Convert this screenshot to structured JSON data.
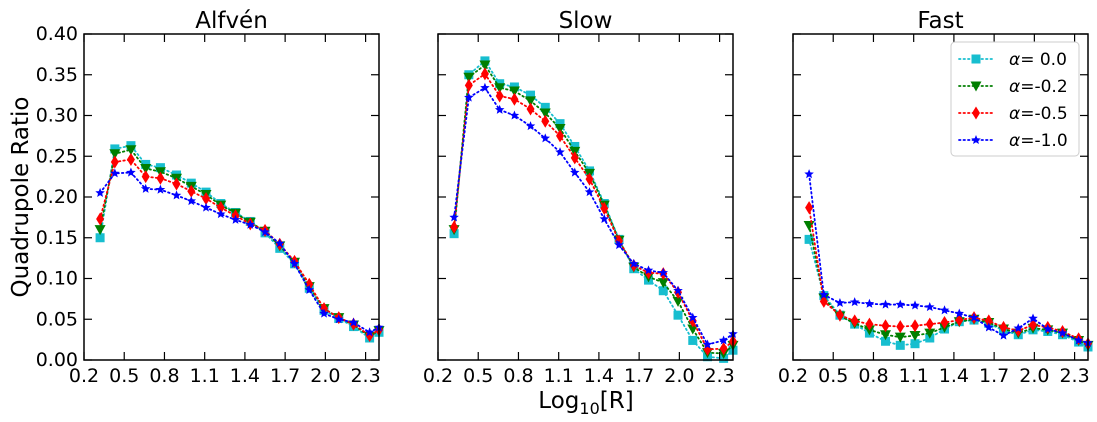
{
  "figure": {
    "ylabel": "Quadrupole Ratio",
    "xlabel_main": "Log",
    "xlabel_sub": "10",
    "xlabel_tail": "[R]"
  },
  "colors": {
    "alpha_0.0": "#17becf",
    "alpha_-0.2": "#007f00",
    "alpha_-0.5": "#ff0000",
    "alpha_-1.0": "#0000ff"
  },
  "legend": {
    "prefix": "α",
    "entries": [
      "= 0.0",
      "=-0.2",
      "=-0.5",
      "=-1.0"
    ],
    "placement": "top-right (Fast panel)"
  },
  "chart_data": [
    {
      "type": "line",
      "title": "Alfvén",
      "xlim": [
        0.2,
        2.4
      ],
      "ylim": [
        0.0,
        0.4
      ],
      "xticks": [
        "0.2",
        "0.5",
        "0.8",
        "1.1",
        "1.4",
        "1.7",
        "2.0",
        "2.3"
      ],
      "yticks": [
        "0.00",
        "0.05",
        "0.10",
        "0.15",
        "0.20",
        "0.25",
        "0.30",
        "0.35",
        "0.40"
      ],
      "x": [
        0.32,
        0.43,
        0.55,
        0.66,
        0.77,
        0.89,
        1.0,
        1.11,
        1.22,
        1.33,
        1.44,
        1.55,
        1.66,
        1.77,
        1.88,
        1.99,
        2.1,
        2.21,
        2.33,
        2.4
      ],
      "series": [
        {
          "name": "α= 0.0",
          "marker": "square",
          "values": [
            0.15,
            0.259,
            0.263,
            0.24,
            0.236,
            0.227,
            0.217,
            0.206,
            0.192,
            0.181,
            0.17,
            0.156,
            0.137,
            0.118,
            0.088,
            0.061,
            0.051,
            0.041,
            0.027,
            0.034
          ]
        },
        {
          "name": "α=-0.2",
          "marker": "triangle-down",
          "values": [
            0.16,
            0.253,
            0.258,
            0.235,
            0.231,
            0.223,
            0.213,
            0.203,
            0.19,
            0.18,
            0.169,
            0.158,
            0.14,
            0.12,
            0.09,
            0.063,
            0.052,
            0.043,
            0.029,
            0.036
          ]
        },
        {
          "name": "α=-0.5",
          "marker": "diamond",
          "values": [
            0.173,
            0.243,
            0.246,
            0.225,
            0.223,
            0.216,
            0.207,
            0.198,
            0.187,
            0.177,
            0.167,
            0.159,
            0.142,
            0.121,
            0.093,
            0.063,
            0.052,
            0.044,
            0.03,
            0.037
          ]
        },
        {
          "name": "α=-1.0",
          "marker": "star",
          "values": [
            0.205,
            0.229,
            0.23,
            0.21,
            0.209,
            0.202,
            0.195,
            0.187,
            0.179,
            0.172,
            0.166,
            0.157,
            0.143,
            0.118,
            0.086,
            0.057,
            0.05,
            0.046,
            0.034,
            0.04
          ]
        }
      ]
    },
    {
      "type": "line",
      "title": "Slow",
      "xlim": [
        0.2,
        2.4
      ],
      "ylim": [
        0.0,
        0.4
      ],
      "xticks": [
        "0.2",
        "0.5",
        "0.8",
        "1.1",
        "1.4",
        "1.7",
        "2.0",
        "2.3"
      ],
      "yticks": [
        "0.00",
        "0.05",
        "0.10",
        "0.15",
        "0.20",
        "0.25",
        "0.30",
        "0.35",
        "0.40"
      ],
      "x": [
        0.32,
        0.43,
        0.55,
        0.66,
        0.77,
        0.89,
        1.0,
        1.11,
        1.22,
        1.33,
        1.44,
        1.55,
        1.66,
        1.77,
        1.88,
        1.99,
        2.1,
        2.21,
        2.33,
        2.4
      ],
      "series": [
        {
          "name": "α= 0.0",
          "marker": "square",
          "values": [
            0.155,
            0.35,
            0.367,
            0.339,
            0.335,
            0.325,
            0.31,
            0.29,
            0.262,
            0.232,
            0.192,
            0.148,
            0.112,
            0.098,
            0.085,
            0.055,
            0.024,
            0.004,
            0.002,
            0.012
          ]
        },
        {
          "name": "α=-0.2",
          "marker": "triangle-down",
          "values": [
            0.16,
            0.347,
            0.362,
            0.334,
            0.33,
            0.318,
            0.303,
            0.284,
            0.256,
            0.229,
            0.19,
            0.147,
            0.114,
            0.102,
            0.095,
            0.072,
            0.038,
            0.009,
            0.008,
            0.018
          ]
        },
        {
          "name": "α=-0.5",
          "marker": "diamond",
          "values": [
            0.163,
            0.337,
            0.351,
            0.324,
            0.32,
            0.308,
            0.293,
            0.275,
            0.248,
            0.222,
            0.186,
            0.146,
            0.116,
            0.107,
            0.106,
            0.083,
            0.048,
            0.013,
            0.014,
            0.023
          ]
        },
        {
          "name": "α=-1.0",
          "marker": "star",
          "values": [
            0.175,
            0.322,
            0.334,
            0.307,
            0.3,
            0.287,
            0.272,
            0.255,
            0.23,
            0.206,
            0.173,
            0.141,
            0.118,
            0.11,
            0.107,
            0.085,
            0.052,
            0.019,
            0.024,
            0.032
          ]
        }
      ]
    },
    {
      "type": "line",
      "title": "Fast",
      "xlim": [
        0.2,
        2.4
      ],
      "ylim": [
        0.0,
        0.4
      ],
      "xticks": [
        "0.2",
        "0.5",
        "0.8",
        "1.1",
        "1.4",
        "1.7",
        "2.0",
        "2.3"
      ],
      "yticks": [
        "0.00",
        "0.05",
        "0.10",
        "0.15",
        "0.20",
        "0.25",
        "0.30",
        "0.35",
        "0.40"
      ],
      "x": [
        0.32,
        0.43,
        0.55,
        0.66,
        0.77,
        0.89,
        1.0,
        1.11,
        1.22,
        1.33,
        1.44,
        1.55,
        1.66,
        1.77,
        1.88,
        1.99,
        2.1,
        2.21,
        2.33,
        2.4
      ],
      "series": [
        {
          "name": "α= 0.0",
          "marker": "square",
          "values": [
            0.148,
            0.079,
            0.055,
            0.044,
            0.033,
            0.023,
            0.018,
            0.02,
            0.027,
            0.038,
            0.047,
            0.049,
            0.045,
            0.036,
            0.031,
            0.037,
            0.035,
            0.031,
            0.022,
            0.016
          ]
        },
        {
          "name": "α=-0.2",
          "marker": "triangle-down",
          "values": [
            0.165,
            0.076,
            0.054,
            0.045,
            0.037,
            0.031,
            0.028,
            0.03,
            0.033,
            0.04,
            0.047,
            0.05,
            0.046,
            0.038,
            0.033,
            0.039,
            0.037,
            0.033,
            0.024,
            0.018
          ]
        },
        {
          "name": "α=-0.5",
          "marker": "diamond",
          "values": [
            0.187,
            0.072,
            0.055,
            0.048,
            0.044,
            0.042,
            0.041,
            0.042,
            0.044,
            0.046,
            0.049,
            0.052,
            0.048,
            0.04,
            0.036,
            0.043,
            0.04,
            0.035,
            0.026,
            0.02
          ]
        },
        {
          "name": "α=-1.0",
          "marker": "star",
          "values": [
            0.228,
            0.08,
            0.07,
            0.071,
            0.069,
            0.068,
            0.068,
            0.067,
            0.065,
            0.061,
            0.057,
            0.052,
            0.04,
            0.03,
            0.039,
            0.051,
            0.038,
            0.033,
            0.024,
            0.021
          ]
        }
      ]
    }
  ]
}
